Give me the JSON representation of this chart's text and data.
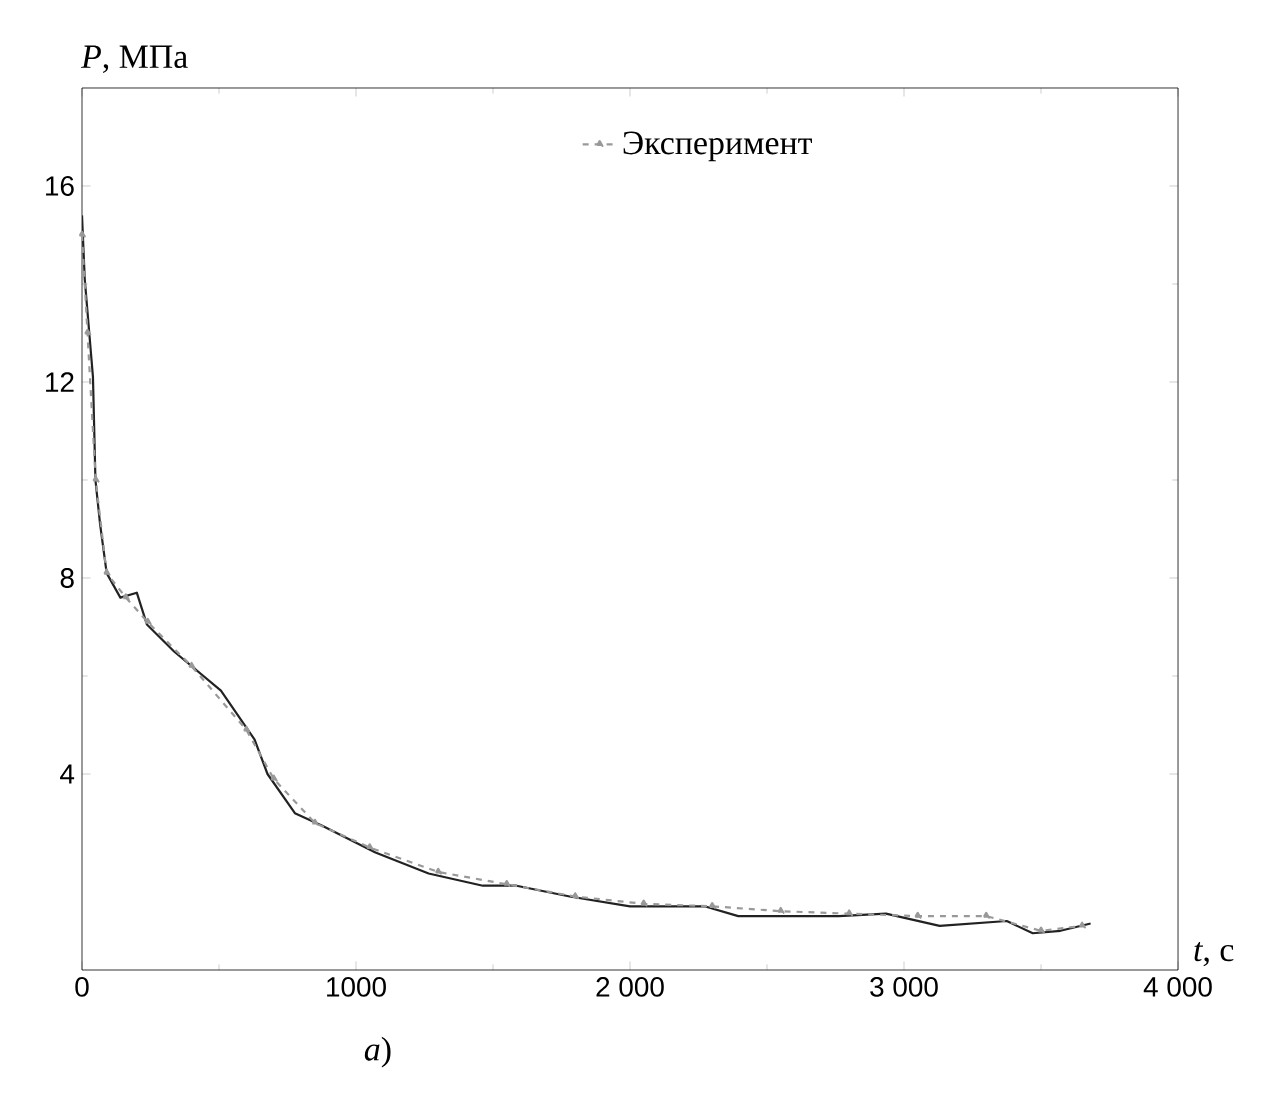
{
  "chart_data": {
    "type": "line",
    "xlabel": "*t*, с",
    "ylabel": "*P*, МПа",
    "annotations": [
      "*a*)"
    ],
    "xlim": [
      0,
      4000
    ],
    "ylim": [
      0,
      18
    ],
    "xticks": [
      0,
      1000,
      {
        "value": 2000,
        "label": "2 000"
      },
      {
        "value": 3000,
        "label": "3 000"
      },
      {
        "value": 4000,
        "label": "4 000"
      }
    ],
    "yticks": [
      4,
      8,
      12,
      16
    ],
    "grid": false,
    "legend": "top right",
    "series": [
      {
        "color": "#222222",
        "line_style": "solid",
        "marker": "none",
        "x": [
          0,
          10,
          40,
          49,
          66,
          90,
          140,
          200,
          237,
          336,
          507,
          630,
          677,
          777,
          875,
          1071,
          1265,
          1463,
          1586,
          1780,
          2000,
          2272,
          2395,
          2762,
          2934,
          3130,
          3375,
          3470,
          3571,
          3681
        ],
        "values": [
          15.4,
          14.1,
          12.1,
          10.0,
          9.1,
          8.1,
          7.6,
          7.7,
          7.05,
          6.5,
          5.7,
          4.7,
          4.0,
          3.2,
          2.95,
          2.4,
          1.97,
          1.72,
          1.72,
          1.5,
          1.3,
          1.3,
          1.1,
          1.1,
          1.15,
          0.9,
          1.0,
          0.75,
          0.8,
          0.95
        ]
      },
      {
        "name": "Эксперимент",
        "color": "#999999",
        "line_style": "dashed",
        "marker": "triangle",
        "x": [
          0,
          20,
          50,
          90,
          160,
          240,
          400,
          600,
          700,
          850,
          1050,
          1300,
          1550,
          1800,
          2050,
          2300,
          2550,
          2800,
          3050,
          3300,
          3500,
          3650
        ],
        "values": [
          15.0,
          13.0,
          10.0,
          8.1,
          7.6,
          7.1,
          6.2,
          4.9,
          3.9,
          3.0,
          2.5,
          2.0,
          1.75,
          1.5,
          1.35,
          1.3,
          1.2,
          1.15,
          1.1,
          1.1,
          0.8,
          0.9
        ]
      }
    ]
  }
}
